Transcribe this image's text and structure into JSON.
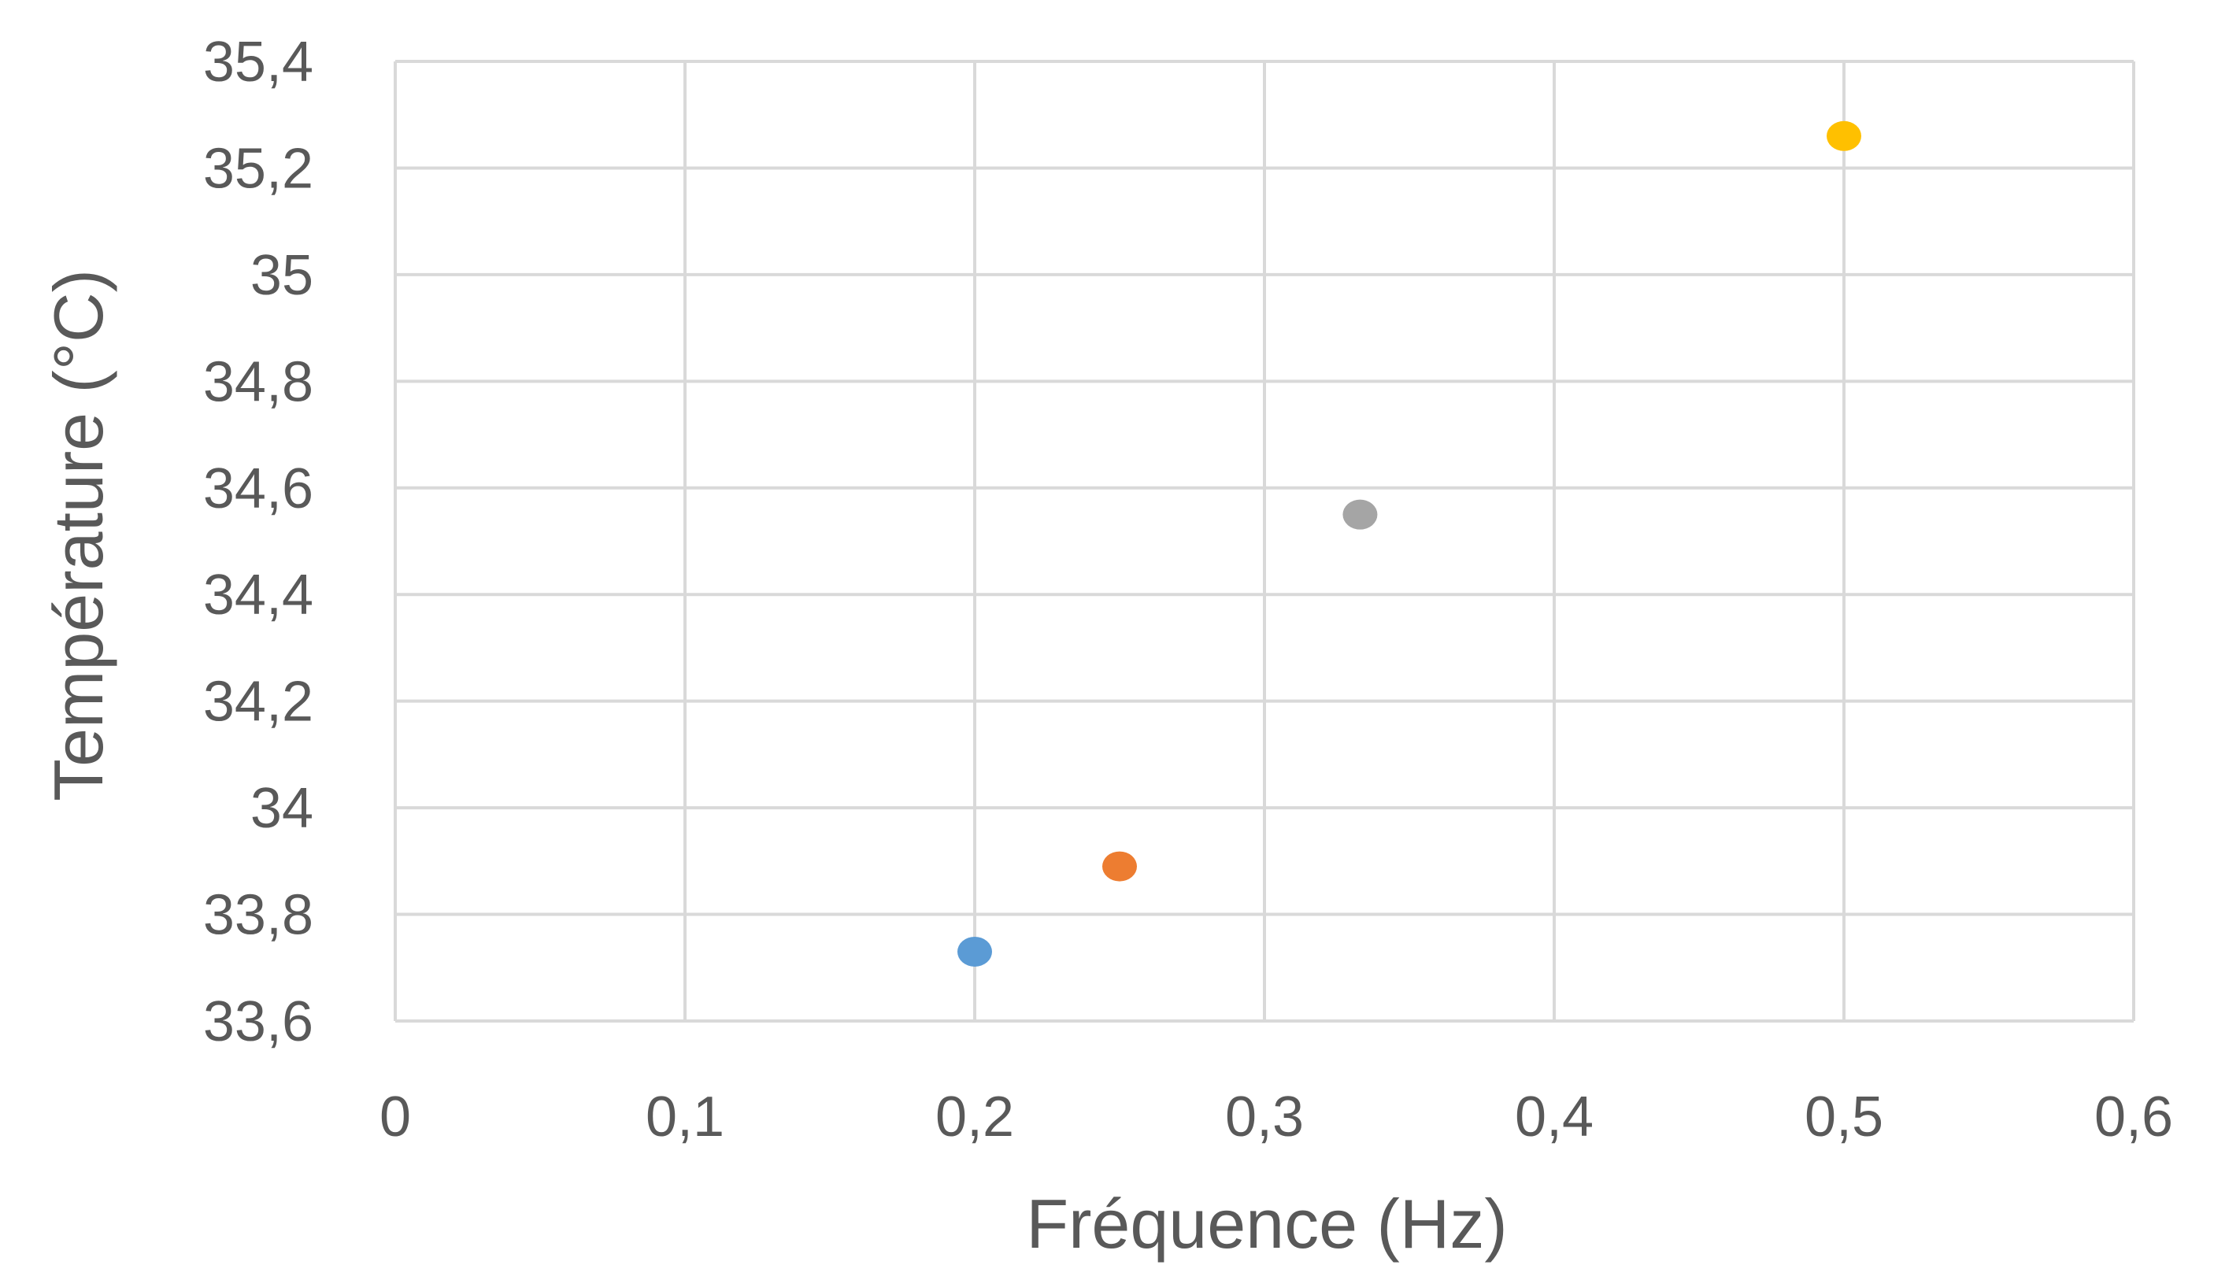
{
  "chart_data": {
    "type": "scatter",
    "title": "",
    "xlabel": "Fréquence (Hz)",
    "ylabel": "Température (°C)",
    "xlim": [
      0,
      0.6
    ],
    "ylim": [
      33.6,
      35.4
    ],
    "grid": true,
    "x_ticks": [
      "0",
      "0,1",
      "0,2",
      "0,3",
      "0,4",
      "0,5",
      "0,6"
    ],
    "y_ticks": [
      "33,6",
      "33,8",
      "34",
      "34,2",
      "34,4",
      "34,6",
      "34,8",
      "35",
      "35,2",
      "35,4"
    ],
    "points": [
      {
        "x": 0.2,
        "y": 33.73,
        "color": "#5B9BD5"
      },
      {
        "x": 0.25,
        "y": 33.89,
        "color": "#ED7D31"
      },
      {
        "x": 0.333,
        "y": 34.55,
        "color": "#A5A5A5"
      },
      {
        "x": 0.5,
        "y": 35.26,
        "color": "#FFC000"
      }
    ],
    "colors": {
      "grid": "#D9D9D9",
      "text": "#595959"
    }
  }
}
